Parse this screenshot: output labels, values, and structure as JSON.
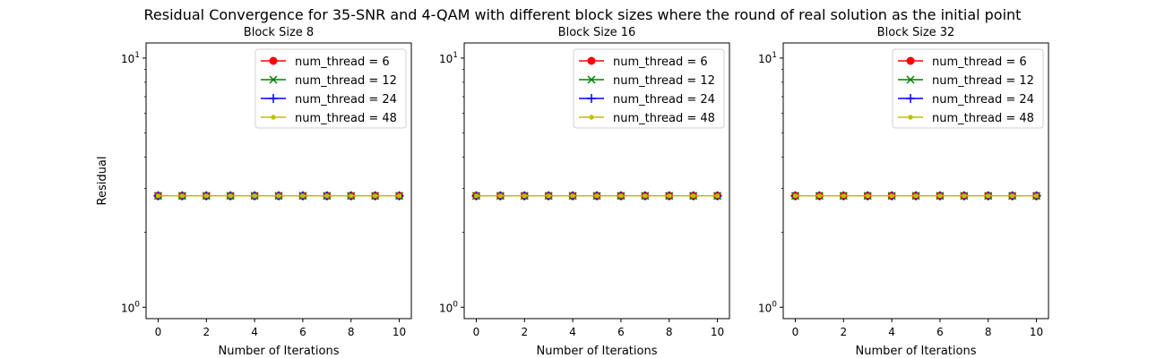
{
  "figure": {
    "suptitle": "Residual Convergence for 35-SNR and 4-QAM with different block sizes where the round of real solution as the initial point"
  },
  "colors": {
    "red": "#ff0000",
    "green": "#008000",
    "blue": "#0000ff",
    "yellow": "#bfbf00"
  },
  "chart_data": [
    {
      "type": "line",
      "title": "Block Size 8",
      "xlabel": "Number of Iterations",
      "ylabel": "Residual",
      "yscale": "log",
      "xlim": [
        -0.5,
        10.5
      ],
      "ylim": [
        0.9,
        11.5
      ],
      "xticks": [
        "0",
        "2",
        "4",
        "6",
        "8",
        "10"
      ],
      "yticks": [
        "10",
        "10"
      ],
      "legend_position": "top-right",
      "x": [
        0,
        1,
        2,
        3,
        4,
        5,
        6,
        7,
        8,
        9,
        10
      ],
      "series": [
        {
          "name": "num_thread = 6",
          "color": "#ff0000",
          "marker": "circle",
          "values": [
            2.8,
            2.8,
            2.8,
            2.8,
            2.8,
            2.8,
            2.8,
            2.8,
            2.8,
            2.8,
            2.8
          ]
        },
        {
          "name": "num_thread = 12",
          "color": "#008000",
          "marker": "x",
          "values": [
            2.8,
            2.8,
            2.8,
            2.8,
            2.8,
            2.8,
            2.8,
            2.8,
            2.8,
            2.8,
            2.8
          ]
        },
        {
          "name": "num_thread = 24",
          "color": "#0000ff",
          "marker": "plus",
          "values": [
            2.8,
            2.8,
            2.8,
            2.8,
            2.8,
            2.8,
            2.8,
            2.8,
            2.8,
            2.8,
            2.8
          ]
        },
        {
          "name": "num_thread = 48",
          "color": "#bfbf00",
          "marker": "point",
          "values": [
            2.8,
            2.8,
            2.8,
            2.8,
            2.8,
            2.8,
            2.8,
            2.8,
            2.8,
            2.8,
            2.8
          ]
        }
      ]
    },
    {
      "type": "line",
      "title": "Block Size 16",
      "xlabel": "Number of Iterations",
      "ylabel": "",
      "yscale": "log",
      "xlim": [
        -0.5,
        10.5
      ],
      "ylim": [
        0.9,
        11.5
      ],
      "xticks": [
        "0",
        "2",
        "4",
        "6",
        "8",
        "10"
      ],
      "yticks": [
        "10",
        "10"
      ],
      "legend_position": "top-right",
      "x": [
        0,
        1,
        2,
        3,
        4,
        5,
        6,
        7,
        8,
        9,
        10
      ],
      "series": [
        {
          "name": "num_thread = 6",
          "color": "#ff0000",
          "marker": "circle",
          "values": [
            2.8,
            2.8,
            2.8,
            2.8,
            2.8,
            2.8,
            2.8,
            2.8,
            2.8,
            2.8,
            2.8
          ]
        },
        {
          "name": "num_thread = 12",
          "color": "#008000",
          "marker": "x",
          "values": [
            2.8,
            2.8,
            2.8,
            2.8,
            2.8,
            2.8,
            2.8,
            2.8,
            2.8,
            2.8,
            2.8
          ]
        },
        {
          "name": "num_thread = 24",
          "color": "#0000ff",
          "marker": "plus",
          "values": [
            2.8,
            2.8,
            2.8,
            2.8,
            2.8,
            2.8,
            2.8,
            2.8,
            2.8,
            2.8,
            2.8
          ]
        },
        {
          "name": "num_thread = 48",
          "color": "#bfbf00",
          "marker": "point",
          "values": [
            2.8,
            2.8,
            2.8,
            2.8,
            2.8,
            2.8,
            2.8,
            2.8,
            2.8,
            2.8,
            2.8
          ]
        }
      ]
    },
    {
      "type": "line",
      "title": "Block Size 32",
      "xlabel": "Number of Iterations",
      "ylabel": "",
      "yscale": "log",
      "xlim": [
        -0.5,
        10.5
      ],
      "ylim": [
        0.9,
        11.5
      ],
      "xticks": [
        "0",
        "2",
        "4",
        "6",
        "8",
        "10"
      ],
      "yticks": [
        "10",
        "10"
      ],
      "legend_position": "top-right",
      "x": [
        0,
        1,
        2,
        3,
        4,
        5,
        6,
        7,
        8,
        9,
        10
      ],
      "series": [
        {
          "name": "num_thread = 6",
          "color": "#ff0000",
          "marker": "circle",
          "values": [
            2.8,
            2.8,
            2.8,
            2.8,
            2.8,
            2.8,
            2.8,
            2.8,
            2.8,
            2.8,
            2.8
          ]
        },
        {
          "name": "num_thread = 12",
          "color": "#008000",
          "marker": "x",
          "values": [
            2.8,
            2.8,
            2.8,
            2.8,
            2.8,
            2.8,
            2.8,
            2.8,
            2.8,
            2.8,
            2.8
          ]
        },
        {
          "name": "num_thread = 24",
          "color": "#0000ff",
          "marker": "plus",
          "values": [
            2.8,
            2.8,
            2.8,
            2.8,
            2.8,
            2.8,
            2.8,
            2.8,
            2.8,
            2.8,
            2.8
          ]
        },
        {
          "name": "num_thread = 48",
          "color": "#bfbf00",
          "marker": "point",
          "values": [
            2.8,
            2.8,
            2.8,
            2.8,
            2.8,
            2.8,
            2.8,
            2.8,
            2.8,
            2.8,
            2.8
          ]
        }
      ]
    }
  ]
}
